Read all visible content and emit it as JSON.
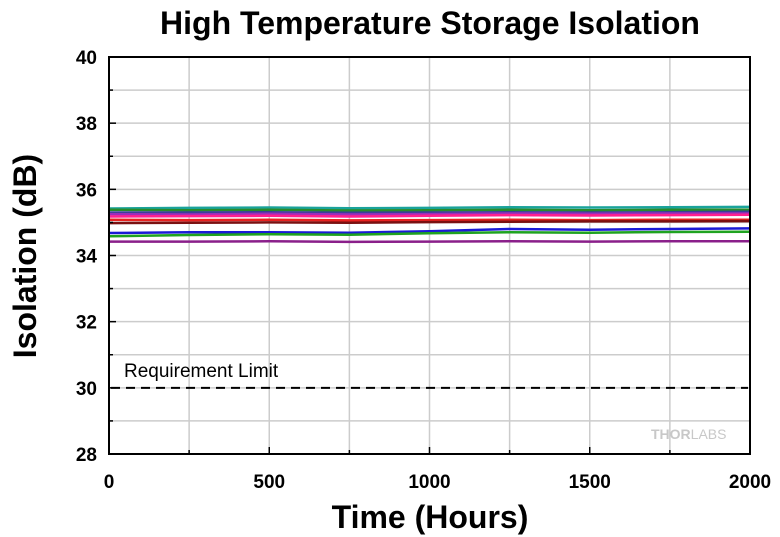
{
  "chart_data": {
    "type": "line",
    "title": "High Temperature Storage Isolation",
    "xlabel": "Time (Hours)",
    "ylabel": "Isolation (dB)",
    "xlim": [
      0,
      2000
    ],
    "ylim": [
      28,
      40
    ],
    "xticks": [
      0,
      500,
      1000,
      1500,
      2000
    ],
    "yticks": [
      28,
      30,
      32,
      34,
      36,
      38,
      40
    ],
    "grid": true,
    "legend": "none",
    "series": [
      {
        "color": "#1aa39b",
        "x": [
          0,
          250,
          500,
          750,
          1000,
          1250,
          1500,
          1750,
          2000
        ],
        "values": [
          35.42,
          35.44,
          35.45,
          35.43,
          35.44,
          35.46,
          35.45,
          35.46,
          35.47
        ]
      },
      {
        "color": "#2a8a2a",
        "x": [
          0,
          250,
          500,
          750,
          1000,
          1250,
          1500,
          1750,
          2000
        ],
        "values": [
          35.38,
          35.37,
          35.38,
          35.36,
          35.37,
          35.38,
          35.37,
          35.38,
          35.38
        ]
      },
      {
        "color": "#3a3f9a",
        "x": [
          0,
          250,
          500,
          750,
          1000,
          1250,
          1500,
          1750,
          2000
        ],
        "values": [
          35.3,
          35.3,
          35.31,
          35.29,
          35.3,
          35.31,
          35.3,
          35.31,
          35.32
        ]
      },
      {
        "color": "#9b2dbb",
        "x": [
          0,
          250,
          500,
          750,
          1000,
          1250,
          1500,
          1750,
          2000
        ],
        "values": [
          35.25,
          35.24,
          35.26,
          35.24,
          35.25,
          35.27,
          35.26,
          35.27,
          35.27
        ]
      },
      {
        "color": "#ff1f8f",
        "x": [
          0,
          250,
          500,
          750,
          1000,
          1250,
          1500,
          1750,
          2000
        ],
        "values": [
          35.18,
          35.19,
          35.2,
          35.18,
          35.2,
          35.22,
          35.21,
          35.22,
          35.23
        ]
      },
      {
        "color": "#e8211f",
        "x": [
          0,
          250,
          500,
          750,
          1000,
          1250,
          1500,
          1750,
          2000
        ],
        "values": [
          35.08,
          35.07,
          35.08,
          35.06,
          35.07,
          35.08,
          35.07,
          35.08,
          35.08
        ]
      },
      {
        "color": "#7a1010",
        "x": [
          0,
          250,
          500,
          750,
          1000,
          1250,
          1500,
          1750,
          2000
        ],
        "values": [
          34.98,
          34.99,
          35.0,
          34.99,
          35.01,
          35.02,
          35.03,
          35.03,
          35.04
        ]
      },
      {
        "color": "#1a1ad6",
        "x": [
          0,
          250,
          500,
          750,
          1000,
          1250,
          1500,
          1750,
          2000
        ],
        "values": [
          34.68,
          34.7,
          34.7,
          34.69,
          34.73,
          34.8,
          34.78,
          34.8,
          34.82
        ]
      },
      {
        "color": "#1fa31f",
        "x": [
          0,
          250,
          500,
          750,
          1000,
          1250,
          1500,
          1750,
          2000
        ],
        "values": [
          34.58,
          34.62,
          34.64,
          34.63,
          34.67,
          34.7,
          34.69,
          34.71,
          34.72
        ]
      },
      {
        "color": "#8a1f8a",
        "x": [
          0,
          250,
          500,
          750,
          1000,
          1250,
          1500,
          1750,
          2000
        ],
        "values": [
          34.42,
          34.42,
          34.43,
          34.41,
          34.42,
          34.43,
          34.42,
          34.43,
          34.43
        ]
      }
    ],
    "reference_line": {
      "y": 30,
      "label": "Requirement Limit",
      "style": "dashed",
      "color": "#000000"
    }
  },
  "watermark": {
    "part1": "THOR",
    "part2": "LABS"
  }
}
